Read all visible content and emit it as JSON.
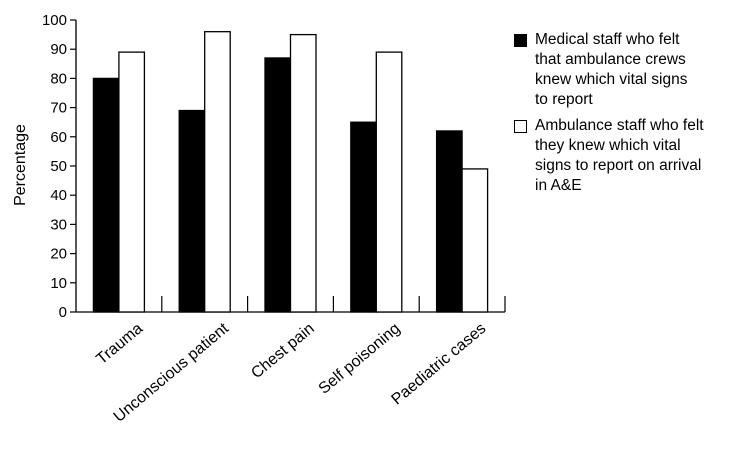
{
  "chart_data": {
    "type": "bar",
    "title": "",
    "xlabel": "",
    "ylabel": "Percentage",
    "ylim": [
      0,
      100
    ],
    "yticks": [
      0,
      10,
      20,
      30,
      40,
      50,
      60,
      70,
      80,
      90,
      100
    ],
    "grid": false,
    "legend_position": "top-right",
    "categories": [
      "Trauma",
      "Unconscious patient",
      "Chest pain",
      "Self poisoning",
      "Paediatric cases"
    ],
    "series": [
      {
        "name": "Medical staff who felt\nthat ambulance crews\nknew which vital signs\nto report",
        "color": "#000000",
        "values": [
          80,
          69,
          87,
          65,
          62
        ]
      },
      {
        "name": "Ambulance staff who felt\nthey knew which vital\nsigns to report on arrival\nin A&E",
        "color": "#ffffff",
        "values": [
          89,
          96,
          95,
          89,
          49
        ]
      }
    ]
  }
}
